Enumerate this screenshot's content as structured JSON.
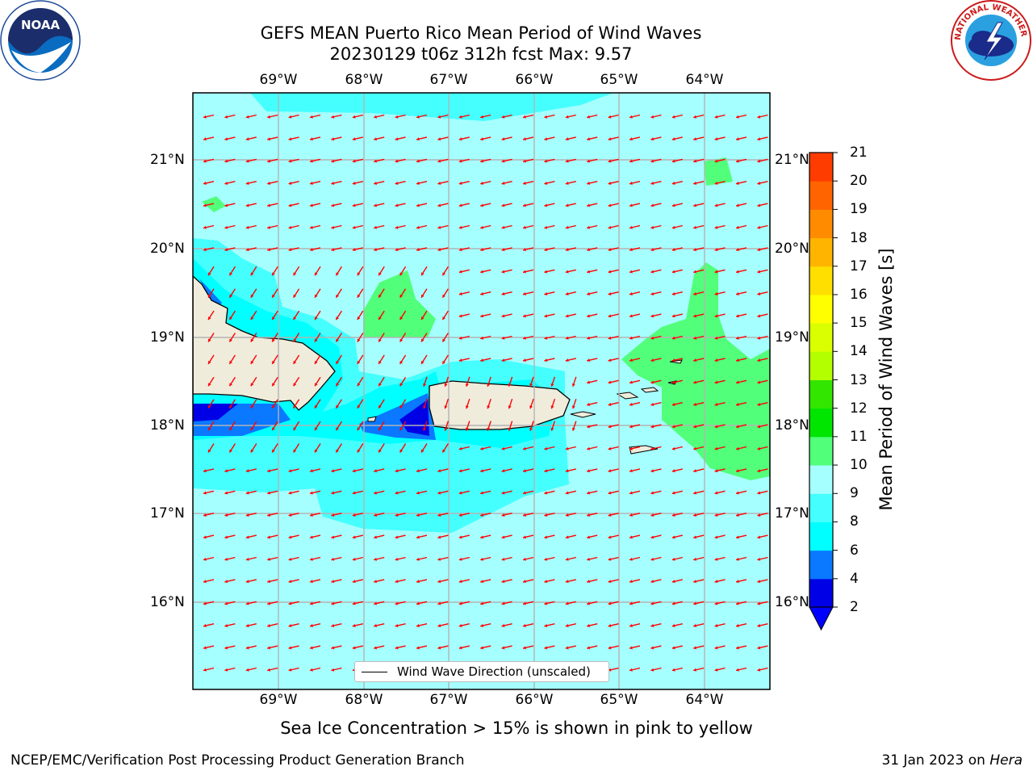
{
  "title_line1": "GEFS MEAN Puerto Rico Mean Period of Wind Waves",
  "title_line2": "20230129 t06z 312h fcst   Max: 9.57",
  "lon_labels": [
    "69°W",
    "68°W",
    "67°W",
    "66°W",
    "65°W",
    "64°W"
  ],
  "lat_labels": [
    "21°N",
    "20°N",
    "19°N",
    "18°N",
    "17°N",
    "16°N"
  ],
  "colorbar": {
    "label": "Mean Period of Wind Waves [s]",
    "ticks": [
      "2",
      "4",
      "6",
      "8",
      "9",
      "10",
      "11",
      "12",
      "13",
      "14",
      "15",
      "16",
      "17",
      "18",
      "19",
      "20",
      "21"
    ],
    "colors": [
      "#0000e6",
      "#0a78ff",
      "#00ffff",
      "#45ffff",
      "#a6ffff",
      "#52ff7a",
      "#00e600",
      "#33e600",
      "#b3ff00",
      "#d9ff00",
      "#ffff00",
      "#ffdf00",
      "#ffb400",
      "#ff8c00",
      "#ff6400",
      "#ff3c00",
      "#ff0000"
    ],
    "extend_color": "#0000ff"
  },
  "legend_label": "Wind Wave Direction (unscaled)",
  "subtitle": "Sea Ice Concentration > 15% is shown in pink to yellow",
  "credit": "NCEP/EMC/Verification Post Processing Product Generation Branch",
  "date_prefix": "31 Jan 2023 on ",
  "date_host": "Hera",
  "logo_left_text": "NOAA",
  "logo_right_text": "NATIONAL WEATHER SERVICE"
}
